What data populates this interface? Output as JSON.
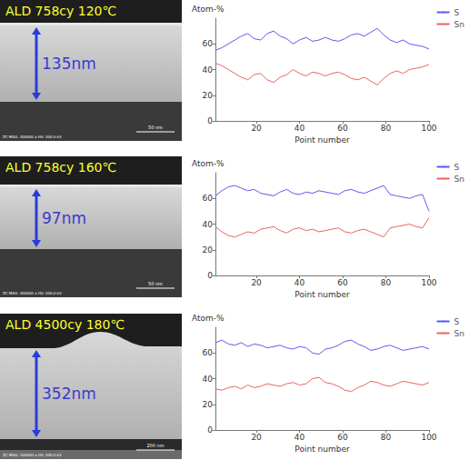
{
  "images": [
    {
      "title": "ALD 758cy 120℃",
      "thickness": "135nm",
      "scale_bar": "50 nm",
      "footer": "ZC MAG: 300000 x HV: 300.0 kV"
    },
    {
      "title": "ALD 758cy 160℃",
      "thickness": "97nm",
      "scale_bar": "50 nm",
      "footer": "ZC MAG: 300000 x HV: 300.0 kV"
    },
    {
      "title": "ALD 4500cy 180℃",
      "thickness": "352nm",
      "scale_bar": "200 nm",
      "footer": "ZC MAG: 100000 x HV: 300.0 kV"
    }
  ],
  "chart_data": [
    {
      "type": "line",
      "ylabel": "Atom-%",
      "xlabel": "Point number",
      "grid": false,
      "legend": "top-right",
      "x": [
        1,
        4,
        7,
        10,
        13,
        16,
        19,
        22,
        25,
        28,
        31,
        34,
        37,
        40,
        43,
        46,
        49,
        52,
        55,
        58,
        61,
        64,
        67,
        70,
        73,
        76,
        79,
        82,
        85,
        88,
        91,
        94,
        97,
        100
      ],
      "series": [
        {
          "name": "S",
          "color": "#5a5af0",
          "values": [
            55,
            57,
            60,
            63,
            66,
            68,
            64,
            63,
            68,
            70,
            66,
            64,
            60,
            63,
            65,
            62,
            63,
            65,
            63,
            62,
            64,
            67,
            68,
            66,
            69,
            72,
            67,
            63,
            61,
            63,
            60,
            59,
            58,
            56
          ]
        },
        {
          "name": "Sn",
          "color": "#e86464",
          "values": [
            45,
            43,
            40,
            37,
            34,
            32,
            36,
            37,
            32,
            30,
            34,
            36,
            40,
            37,
            35,
            38,
            37,
            35,
            37,
            38,
            36,
            33,
            32,
            34,
            31,
            28,
            33,
            37,
            39,
            37,
            40,
            41,
            42,
            44
          ]
        }
      ],
      "xlim": [
        1,
        100
      ],
      "xticks": [
        20,
        40,
        60,
        80,
        100
      ],
      "ylim": [
        0,
        80
      ],
      "yticks": [
        0,
        20,
        40,
        60
      ]
    },
    {
      "type": "line",
      "ylabel": "Atom-%",
      "xlabel": "Point number",
      "grid": false,
      "legend": "top-right",
      "x": [
        1,
        4,
        7,
        10,
        13,
        16,
        19,
        22,
        25,
        28,
        31,
        34,
        37,
        40,
        43,
        46,
        49,
        52,
        55,
        58,
        61,
        64,
        67,
        70,
        73,
        76,
        79,
        82,
        85,
        88,
        91,
        94,
        97,
        100
      ],
      "series": [
        {
          "name": "S",
          "color": "#5a5af0",
          "values": [
            62,
            66,
            69,
            70,
            68,
            66,
            67,
            64,
            63,
            62,
            65,
            67,
            64,
            63,
            65,
            64,
            66,
            65,
            64,
            63,
            66,
            67,
            65,
            64,
            66,
            68,
            70,
            63,
            62,
            61,
            60,
            62,
            63,
            50
          ]
        },
        {
          "name": "Sn",
          "color": "#e86464",
          "values": [
            38,
            34,
            31,
            30,
            32,
            34,
            33,
            36,
            37,
            38,
            35,
            33,
            36,
            37,
            35,
            36,
            34,
            35,
            36,
            37,
            34,
            33,
            35,
            36,
            34,
            32,
            30,
            37,
            38,
            39,
            40,
            38,
            37,
            45
          ]
        }
      ],
      "xlim": [
        1,
        100
      ],
      "xticks": [
        20,
        40,
        60,
        80,
        100
      ],
      "ylim": [
        0,
        80
      ],
      "yticks": [
        0,
        20,
        40,
        60
      ]
    },
    {
      "type": "line",
      "ylabel": "Atom-%",
      "xlabel": "Point number",
      "grid": false,
      "legend": "top-right",
      "x": [
        1,
        4,
        7,
        10,
        13,
        16,
        19,
        22,
        25,
        28,
        31,
        34,
        37,
        40,
        43,
        46,
        49,
        52,
        55,
        58,
        61,
        64,
        67,
        70,
        73,
        76,
        79,
        82,
        85,
        88,
        91,
        94,
        97,
        100
      ],
      "series": [
        {
          "name": "S",
          "color": "#5a5af0",
          "values": [
            68,
            70,
            67,
            66,
            68,
            65,
            67,
            66,
            64,
            65,
            66,
            64,
            63,
            65,
            64,
            60,
            59,
            63,
            64,
            66,
            69,
            70,
            67,
            65,
            62,
            63,
            65,
            66,
            64,
            62,
            63,
            64,
            65,
            63
          ]
        },
        {
          "name": "Sn",
          "color": "#e86464",
          "values": [
            32,
            31,
            33,
            34,
            32,
            35,
            33,
            34,
            36,
            35,
            34,
            36,
            37,
            35,
            36,
            40,
            41,
            37,
            36,
            34,
            31,
            30,
            33,
            35,
            38,
            37,
            35,
            34,
            36,
            38,
            37,
            36,
            35,
            37
          ]
        }
      ],
      "xlim": [
        1,
        100
      ],
      "xticks": [
        20,
        40,
        60,
        80,
        100
      ],
      "ylim": [
        0,
        80
      ],
      "yticks": [
        0,
        20,
        40,
        60
      ]
    }
  ]
}
